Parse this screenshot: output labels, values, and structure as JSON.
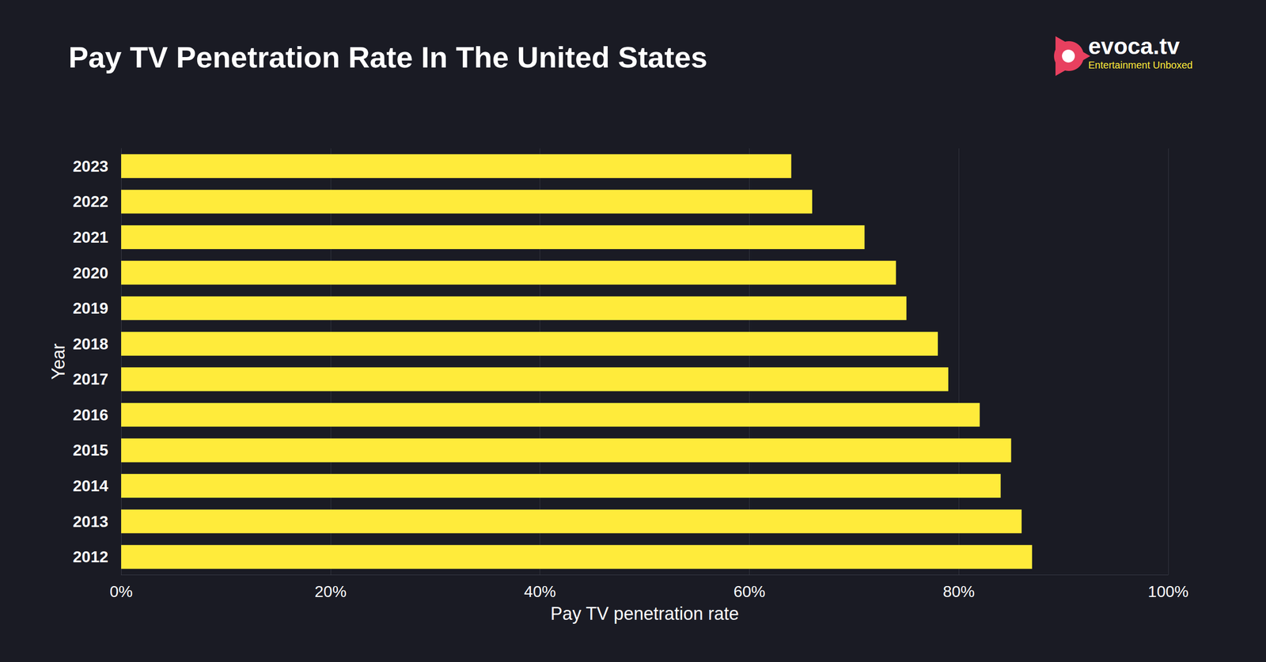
{
  "chart_data": {
    "type": "bar",
    "orientation": "horizontal",
    "title": "Pay TV Penetration Rate In The United States",
    "annotations": [
      "evoca.tv",
      "Entertainment Unboxed"
    ],
    "x_label": "Pay TV penetration rate",
    "y_label": "Year",
    "categories": [
      "2012",
      "2013",
      "2014",
      "2015",
      "2016",
      "2017",
      "2018",
      "2019",
      "2020",
      "2021",
      "2022",
      "2023"
    ],
    "values": [
      87,
      86,
      84,
      85,
      82,
      79,
      78,
      75,
      74,
      71,
      66,
      64
    ],
    "color": "#ffeb3b",
    "xlim": [
      0,
      100
    ],
    "xticks": [
      {
        "value": 0,
        "label": "0%"
      },
      {
        "value": 20,
        "label": "20%"
      },
      {
        "value": 40,
        "label": "40%"
      },
      {
        "value": 60,
        "label": "60%"
      },
      {
        "value": 80,
        "label": "80%"
      },
      {
        "value": 100,
        "label": "100%"
      }
    ],
    "grid": true
  }
}
